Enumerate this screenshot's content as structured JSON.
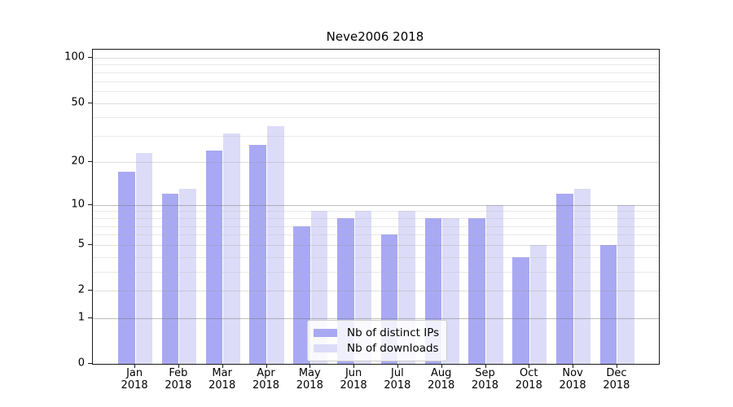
{
  "chart_data": {
    "type": "bar",
    "title": "Neve2006 2018",
    "categories": [
      "Jan",
      "Feb",
      "Mar",
      "Apr",
      "May",
      "Jun",
      "Jul",
      "Aug",
      "Sep",
      "Oct",
      "Nov",
      "Dec"
    ],
    "category_year": "2018",
    "series": [
      {
        "name": "Nb of distinct IPs",
        "color": "#a9a9f3",
        "values": [
          17,
          12,
          24,
          26,
          7,
          8,
          6,
          8,
          8,
          4,
          12,
          5
        ]
      },
      {
        "name": "Nb of downloads",
        "color": "#dcdcf8",
        "values": [
          23,
          13,
          31,
          35,
          9,
          9,
          9,
          8,
          10,
          5,
          13,
          10
        ]
      }
    ],
    "xlabel": "",
    "ylabel": "",
    "yscale": "log1p",
    "yticks": [
      0,
      1,
      2,
      5,
      10,
      20,
      50,
      100
    ],
    "ylim": [
      0,
      100
    ],
    "grid": true,
    "legend_position": "lower center"
  }
}
